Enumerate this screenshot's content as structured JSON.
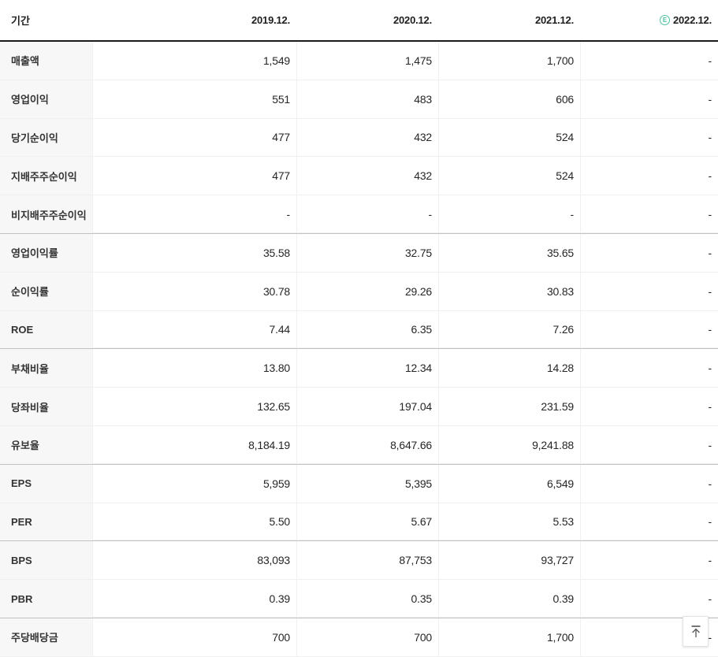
{
  "table": {
    "header": {
      "period_label": "기간",
      "columns": [
        "2019.12.",
        "2020.12.",
        "2021.12.",
        "2022.12."
      ],
      "estimate_icon": "E",
      "estimate_column_index": 3
    },
    "rows": [
      {
        "label": "매출액",
        "values": [
          "1,549",
          "1,475",
          "1,700",
          "-"
        ],
        "group_end": false
      },
      {
        "label": "영업이익",
        "values": [
          "551",
          "483",
          "606",
          "-"
        ],
        "group_end": false
      },
      {
        "label": "당기순이익",
        "values": [
          "477",
          "432",
          "524",
          "-"
        ],
        "group_end": false
      },
      {
        "label": "지배주주순이익",
        "values": [
          "477",
          "432",
          "524",
          "-"
        ],
        "group_end": false
      },
      {
        "label": "비지배주주순이익",
        "values": [
          "-",
          "-",
          "-",
          "-"
        ],
        "group_end": true
      },
      {
        "label": "영업이익률",
        "values": [
          "35.58",
          "32.75",
          "35.65",
          "-"
        ],
        "group_end": false
      },
      {
        "label": "순이익률",
        "values": [
          "30.78",
          "29.26",
          "30.83",
          "-"
        ],
        "group_end": false
      },
      {
        "label": "ROE",
        "values": [
          "7.44",
          "6.35",
          "7.26",
          "-"
        ],
        "group_end": true
      },
      {
        "label": "부채비율",
        "values": [
          "13.80",
          "12.34",
          "14.28",
          "-"
        ],
        "group_end": false
      },
      {
        "label": "당좌비율",
        "values": [
          "132.65",
          "197.04",
          "231.59",
          "-"
        ],
        "group_end": false
      },
      {
        "label": "유보율",
        "values": [
          "8,184.19",
          "8,647.66",
          "9,241.88",
          "-"
        ],
        "group_end": true
      },
      {
        "label": "EPS",
        "values": [
          "5,959",
          "5,395",
          "6,549",
          "-"
        ],
        "group_end": false
      },
      {
        "label": "PER",
        "values": [
          "5.50",
          "5.67",
          "5.53",
          "-"
        ],
        "group_end": true
      },
      {
        "label": "BPS",
        "values": [
          "83,093",
          "87,753",
          "93,727",
          "-"
        ],
        "group_end": false
      },
      {
        "label": "PBR",
        "values": [
          "0.39",
          "0.35",
          "0.39",
          "-"
        ],
        "group_end": true
      },
      {
        "label": "주당배당금",
        "values": [
          "700",
          "700",
          "1,700",
          "-"
        ],
        "group_end": false
      }
    ]
  },
  "colors": {
    "estimate_green": "#4cc2a0",
    "header_border": "#1a1a1a",
    "row_border": "#f0f0f0",
    "group_border": "#c2c2c2",
    "label_background": "#f7f7f7"
  },
  "scroll_top_button": {
    "icon": "arrow-up-to-top"
  }
}
